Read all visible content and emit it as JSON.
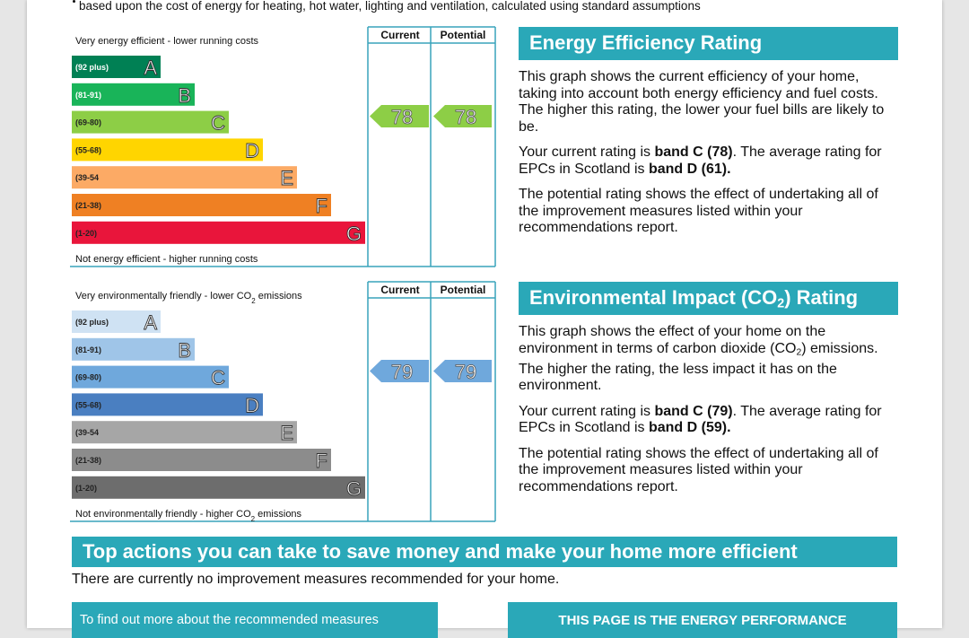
{
  "intro": "based upon the cost of energy for heating, hot water, lighting and ventilation, calculated using standard assumptions",
  "energy_chart": {
    "top_label": [
      {
        "text": "Very energy efficient - lower running costs"
      }
    ],
    "bottom_label": [
      {
        "text": "Not energy efficient - higher running costs"
      }
    ],
    "columns": [
      "Current",
      "Potential"
    ],
    "bands": [
      {
        "range": "(92 plus)",
        "letter": "A",
        "color": "#008054"
      },
      {
        "range": "(81-91)",
        "letter": "B",
        "color": "#19b459"
      },
      {
        "range": "(69-80)",
        "letter": "C",
        "color": "#8dce46"
      },
      {
        "range": "(55-68)",
        "letter": "D",
        "color": "#ffd500"
      },
      {
        "range": "(39-54",
        "letter": "E",
        "color": "#fcaa65"
      },
      {
        "range": "(21-38)",
        "letter": "F",
        "color": "#ef8023"
      },
      {
        "range": "(1-20)",
        "letter": "G",
        "color": "#e9153b"
      }
    ],
    "current": "78",
    "potential": "78"
  },
  "energy_text": {
    "title": [
      {
        "text": "Energy Efficiency Rating"
      }
    ],
    "paragraphs": [
      [
        {
          "text": "This graph shows the current efficiency of your home, taking into account both energy efficiency and fuel costs. The higher this rating, the lower your fuel bills are likely to be."
        }
      ],
      [
        {
          "text": "Your current rating is "
        },
        {
          "text": "band C (78)",
          "bold": true
        },
        {
          "text": ". The average rating for EPCs in Scotland is "
        },
        {
          "text": "band D (61).",
          "bold": true
        }
      ],
      [
        {
          "text": "The potential rating shows the effect of undertaking all of the improvement measures listed within your recommendations report."
        }
      ]
    ]
  },
  "co2_chart": {
    "top_label": [
      {
        "text": "Very environmentally friendly - lower CO"
      },
      {
        "text": "2",
        "sub": true
      },
      {
        "text": " emissions"
      }
    ],
    "bottom_label": [
      {
        "text": "Not environmentally friendly - higher CO"
      },
      {
        "text": "2",
        "sub": true
      },
      {
        "text": " emissions"
      }
    ],
    "columns": [
      "Current",
      "Potential"
    ],
    "bands": [
      {
        "range": "(92 plus)",
        "letter": "A",
        "color": "#cfe2f3"
      },
      {
        "range": "(81-91)",
        "letter": "B",
        "color": "#9fc5e8"
      },
      {
        "range": "(69-80)",
        "letter": "C",
        "color": "#6fa8dc"
      },
      {
        "range": "(55-68)",
        "letter": "D",
        "color": "#4a7fc1"
      },
      {
        "range": "(39-54",
        "letter": "E",
        "color": "#a6a6a6"
      },
      {
        "range": "(21-38)",
        "letter": "F",
        "color": "#8c8c8c"
      },
      {
        "range": "(1-20)",
        "letter": "G",
        "color": "#6d6d6d"
      }
    ],
    "current": "79",
    "potential": "79"
  },
  "co2_text": {
    "title": [
      {
        "text": "Environmental Impact (CO"
      },
      {
        "text": "2",
        "sub": true
      },
      {
        "text": ") Rating"
      }
    ],
    "paragraphs": [
      [
        {
          "text": "This graph shows the effect of your home on the environment in terms of carbon dioxide (CO"
        },
        {
          "text": "2",
          "sub": true
        },
        {
          "text": ") emissions. The higher the rating, the less impact it has on the environment."
        }
      ],
      [
        {
          "text": "Your current rating is "
        },
        {
          "text": "band C (79)",
          "bold": true
        },
        {
          "text": ". The average rating for EPCs in Scotland is "
        },
        {
          "text": "band D (59).",
          "bold": true
        }
      ],
      [
        {
          "text": "The potential rating shows the effect of undertaking all of the improvement measures listed within your recommendations report."
        }
      ]
    ]
  },
  "actions": {
    "title": "Top actions you can take to save money and make your home more efficient",
    "note": "There are currently no improvement measures recommended for your home.",
    "left_box": "To find out more about the recommended measures",
    "right_box": "THIS PAGE IS THE ENERGY PERFORMANCE"
  }
}
